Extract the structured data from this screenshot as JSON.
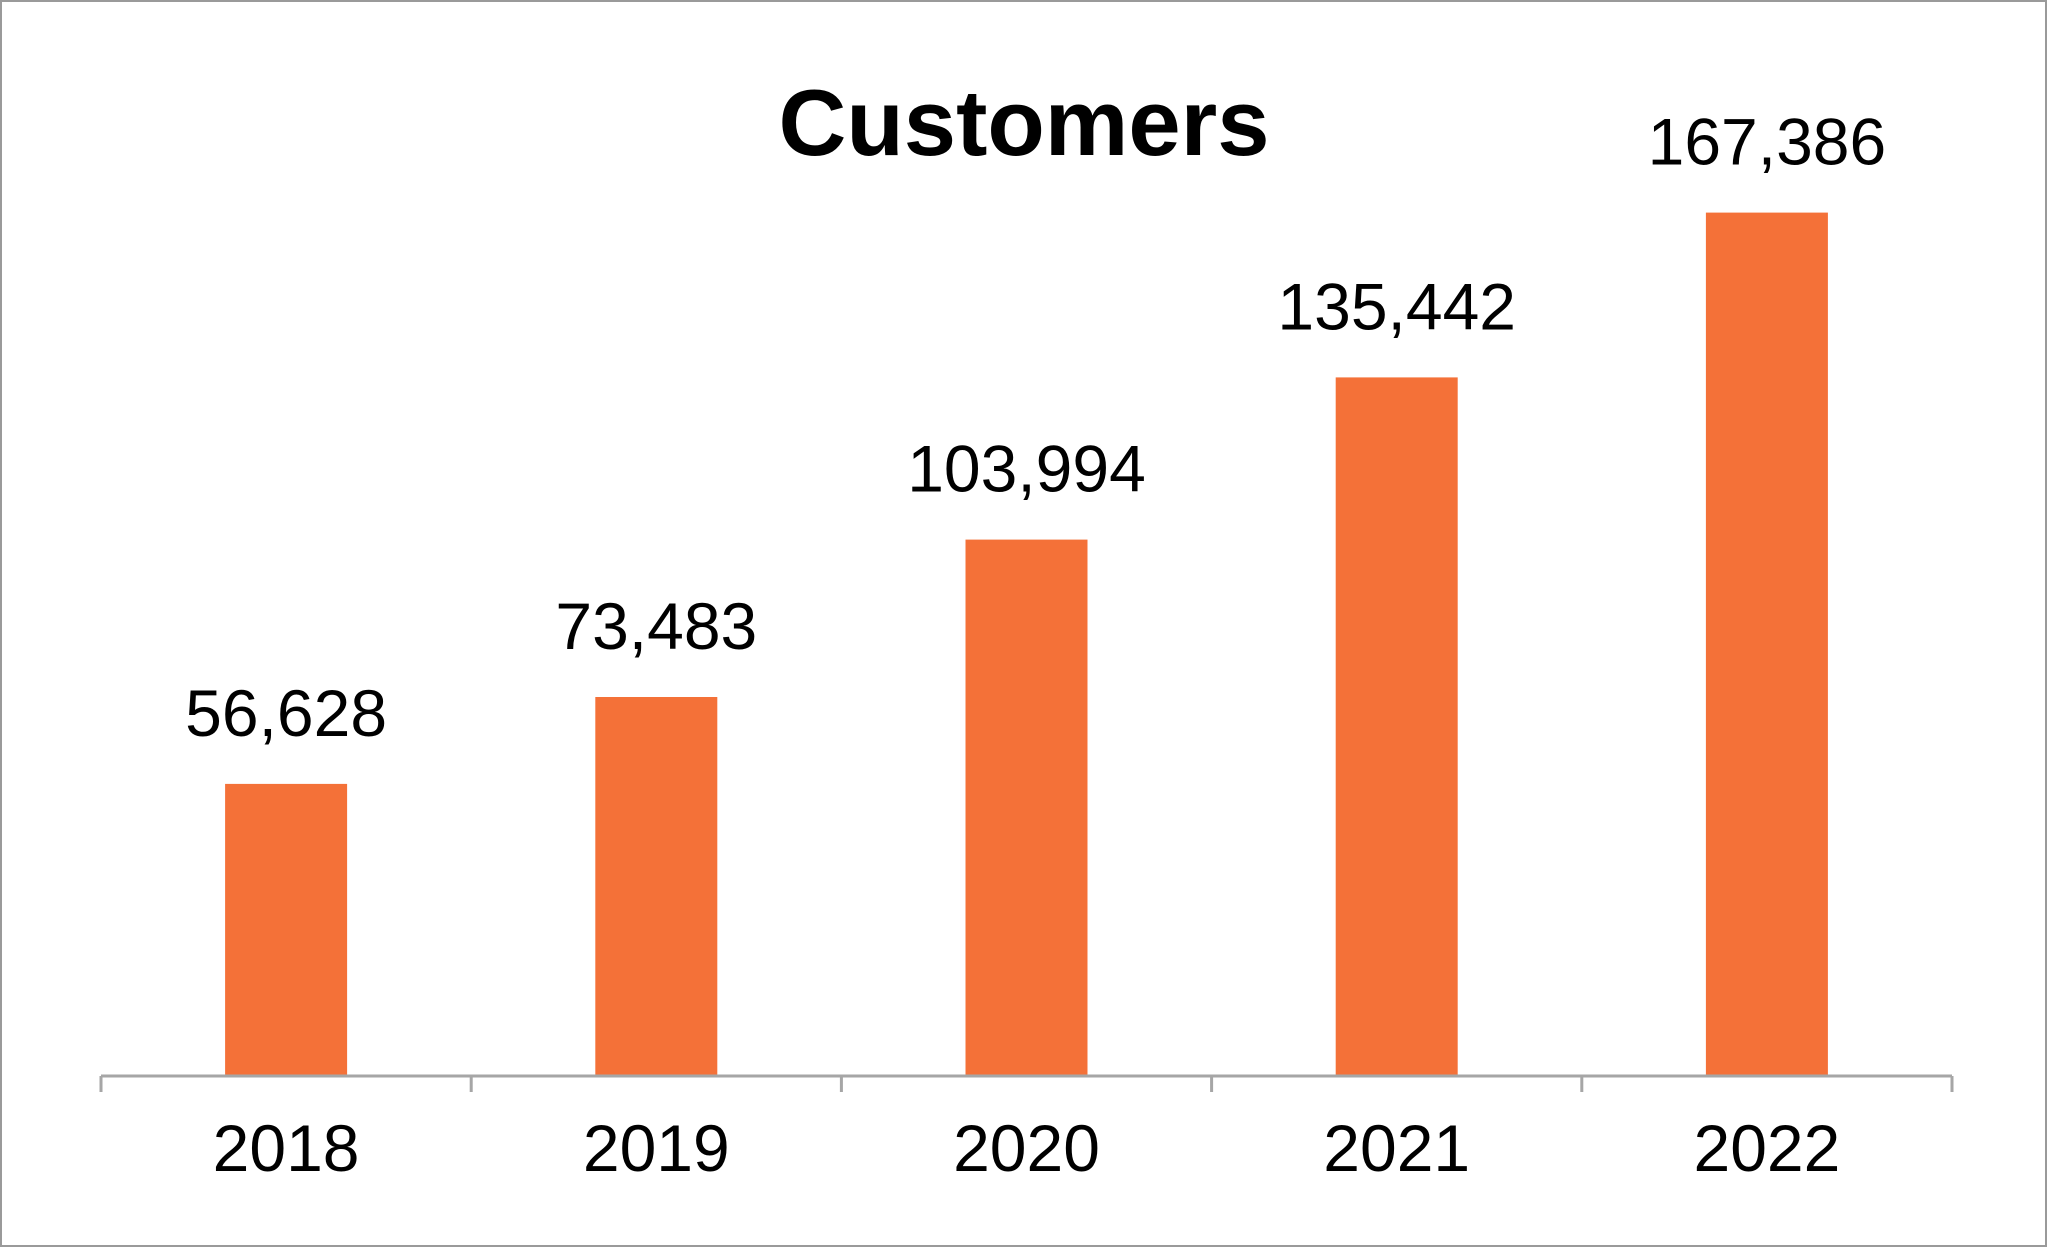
{
  "chart_data": {
    "type": "bar",
    "title": "Customers",
    "categories": [
      "2018",
      "2019",
      "2020",
      "2021",
      "2022"
    ],
    "values": [
      56628,
      73483,
      103994,
      135442,
      167386
    ],
    "value_labels": [
      "56,628",
      "73,483",
      "103,994",
      "135,442",
      "167,386"
    ],
    "xlabel": "",
    "ylabel": "",
    "ylim": [
      0,
      200000
    ],
    "grid": false,
    "legend": "none",
    "bar_color": "#F47138",
    "axis_color": "#A6A6A6"
  }
}
